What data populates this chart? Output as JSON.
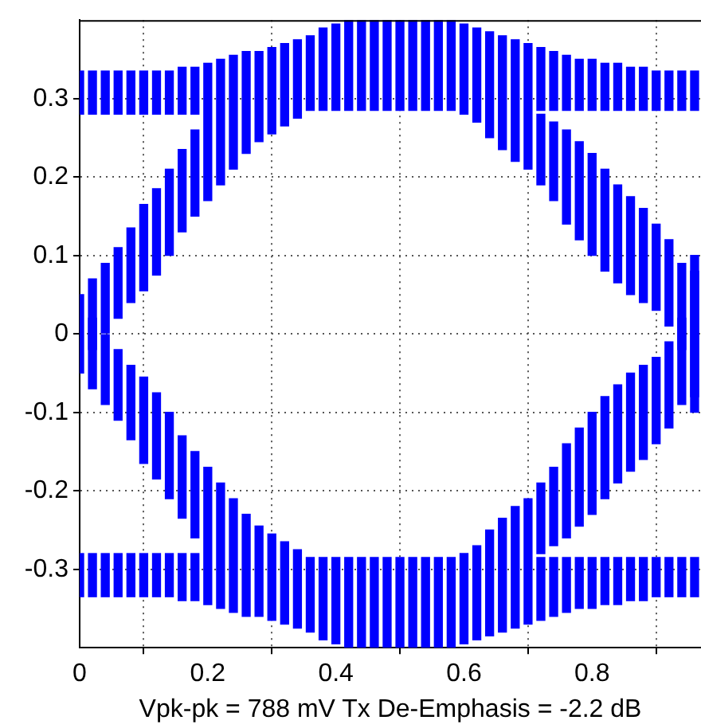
{
  "chart_data": {
    "type": "bar",
    "xlabel": "Vpk-pk = 788 mV Tx De-Emphasis = -2.2 dB",
    "xlim": [
      0,
      0.97
    ],
    "ylim": [
      -0.4,
      0.4
    ],
    "xticks": [
      0,
      0.2,
      0.4,
      0.6,
      0.8
    ],
    "yticks": [
      -0.3,
      -0.2,
      -0.1,
      0,
      0.1,
      0.2,
      0.3
    ],
    "grid": true,
    "legend": false,
    "series": [
      {
        "color": "#0000ff",
        "x": [
          0,
          0.02,
          0.04,
          0.06,
          0.08,
          0.1,
          0.12,
          0.14,
          0.16,
          0.18,
          0.2,
          0.22,
          0.24,
          0.26,
          0.28,
          0.3,
          0.32,
          0.34,
          0.36,
          0.38,
          0.4,
          0.42,
          0.44,
          0.46,
          0.48,
          0.5,
          0.52,
          0.54,
          0.56,
          0.58,
          0.6,
          0.62,
          0.64,
          0.66,
          0.68,
          0.7,
          0.72,
          0.74,
          0.76,
          0.78,
          0.8,
          0.82,
          0.84,
          0.86,
          0.88,
          0.9,
          0.92,
          0.94,
          0.96
        ],
        "base": [
          0.28,
          0.28,
          0.28,
          0.28,
          0.28,
          0.28,
          0.28,
          0.28,
          0.28,
          0.28,
          0.17,
          0.19,
          0.21,
          0.23,
          0.245,
          0.255,
          0.265,
          0.275,
          0.285,
          0.285,
          0.285,
          0.285,
          0.285,
          0.285,
          0.285,
          0.285,
          0.285,
          0.285,
          0.285,
          0.285,
          0.28,
          0.27,
          0.25,
          0.235,
          0.22,
          0.21,
          0.285,
          0.285,
          0.285,
          0.285,
          0.285,
          0.285,
          0.285,
          0.285,
          0.285,
          0.285,
          0.285,
          0.285,
          0.285
        ],
        "values": [
          0.055,
          0.055,
          0.055,
          0.055,
          0.055,
          0.055,
          0.055,
          0.055,
          0.06,
          0.06,
          0.175,
          0.16,
          0.145,
          0.13,
          0.115,
          0.11,
          0.105,
          0.1,
          0.095,
          0.105,
          0.11,
          0.115,
          0.115,
          0.115,
          0.115,
          0.115,
          0.115,
          0.115,
          0.115,
          0.115,
          0.115,
          0.12,
          0.135,
          0.145,
          0.155,
          0.16,
          0.08,
          0.075,
          0.07,
          0.065,
          0.065,
          0.06,
          0.06,
          0.055,
          0.055,
          0.05,
          0.05,
          0.05,
          0.05
        ]
      },
      {
        "color": "#0000ff",
        "x": [
          0,
          0.02,
          0.04,
          0.06,
          0.08,
          0.1,
          0.12,
          0.14,
          0.16,
          0.18,
          0.2,
          0.22,
          0.24,
          0.26,
          0.28,
          0.3,
          0.32,
          0.34,
          0.36,
          0.38,
          0.4,
          0.42,
          0.44,
          0.46,
          0.48,
          0.5,
          0.52,
          0.54,
          0.56,
          0.58,
          0.6,
          0.62,
          0.64,
          0.66,
          0.68,
          0.7,
          0.72,
          0.74,
          0.76,
          0.78,
          0.8,
          0.82,
          0.84,
          0.86,
          0.88,
          0.9,
          0.92,
          0.94,
          0.96
        ],
        "base": [
          -0.05,
          -0.02,
          0,
          0.02,
          0.04,
          0.055,
          0.075,
          0.1,
          0.13,
          0.15,
          -0.345,
          -0.35,
          -0.355,
          -0.36,
          -0.36,
          -0.365,
          -0.37,
          -0.375,
          -0.38,
          -0.39,
          -0.395,
          -0.4,
          -0.4,
          -0.4,
          -0.4,
          -0.4,
          -0.4,
          -0.4,
          -0.4,
          -0.4,
          -0.395,
          -0.39,
          -0.385,
          -0.38,
          -0.375,
          -0.37,
          0.19,
          0.17,
          0.14,
          0.12,
          0.1,
          0.08,
          0.065,
          0.05,
          0.04,
          0.03,
          0.01,
          -0.02,
          -0.1
        ],
        "values": [
          0.1,
          0.09,
          0.09,
          0.09,
          0.095,
          0.11,
          0.11,
          0.11,
          0.105,
          0.11,
          0.175,
          0.16,
          0.145,
          0.13,
          0.115,
          0.11,
          0.105,
          0.1,
          0.095,
          0.105,
          0.11,
          0.115,
          0.115,
          0.115,
          0.115,
          0.115,
          0.115,
          0.115,
          0.115,
          0.115,
          0.115,
          0.12,
          0.135,
          0.145,
          0.155,
          0.16,
          0.09,
          0.1,
          0.12,
          0.125,
          0.13,
          0.13,
          0.125,
          0.125,
          0.12,
          0.11,
          0.11,
          0.11,
          0.18
        ]
      },
      {
        "color": "#0000ff",
        "x": [
          0,
          0.02,
          0.04,
          0.06,
          0.08,
          0.1,
          0.12,
          0.14,
          0.16,
          0.18,
          0.72,
          0.74,
          0.76,
          0.78,
          0.8,
          0.82,
          0.84,
          0.86,
          0.88,
          0.9,
          0.92,
          0.94,
          0.96
        ],
        "base": [
          -0.335,
          -0.07,
          -0.09,
          -0.11,
          -0.135,
          -0.165,
          -0.185,
          -0.21,
          -0.235,
          -0.26,
          -0.28,
          -0.27,
          -0.26,
          -0.245,
          -0.23,
          -0.21,
          -0.19,
          -0.175,
          -0.16,
          -0.14,
          -0.12,
          -0.09,
          -0.08
        ],
        "values": [
          0.055,
          0.09,
          0.09,
          0.09,
          0.095,
          0.11,
          0.11,
          0.11,
          0.105,
          0.11,
          0.09,
          0.1,
          0.12,
          0.125,
          0.13,
          0.13,
          0.125,
          0.125,
          0.12,
          0.11,
          0.11,
          0.11,
          0.18
        ]
      },
      {
        "color": "#0000ff",
        "x": [
          0.02,
          0.04,
          0.06,
          0.08,
          0.1,
          0.12,
          0.14,
          0.16,
          0.18,
          0.72,
          0.74,
          0.76,
          0.78,
          0.8,
          0.82,
          0.84,
          0.86,
          0.88,
          0.9,
          0.92,
          0.94,
          0.96
        ],
        "base": [
          -0.335,
          -0.335,
          -0.335,
          -0.335,
          -0.335,
          -0.335,
          -0.335,
          -0.34,
          -0.34,
          -0.365,
          -0.36,
          -0.355,
          -0.35,
          -0.35,
          -0.345,
          -0.345,
          -0.34,
          -0.34,
          -0.335,
          -0.335,
          -0.335,
          -0.335
        ],
        "values": [
          0.055,
          0.055,
          0.055,
          0.055,
          0.055,
          0.055,
          0.055,
          0.06,
          0.06,
          0.08,
          0.075,
          0.07,
          0.065,
          0.065,
          0.06,
          0.06,
          0.055,
          0.055,
          0.05,
          0.05,
          0.05,
          0.05
        ]
      }
    ]
  }
}
